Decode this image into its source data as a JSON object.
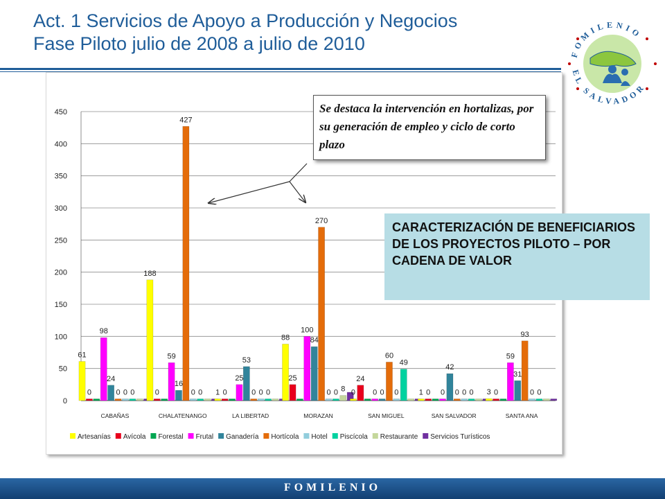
{
  "header": {
    "title_line1": "Act. 1 Servicios de Apoyo a Producción y Negocios",
    "title_line2": "Fase Piloto julio de 2008 a julio de 2010"
  },
  "logo": {
    "text_top": "FOMILENIO",
    "text_bottom": "EL SALVADOR"
  },
  "callout": {
    "text": "Se destaca la intervención en hortalizas, por su generación de empleo y ciclo de corto plazo"
  },
  "info_box": {
    "text": "CARACTERIZACIÓN DE BENEFICIARIOS DE LOS PROYECTOS PILOTO – POR CADENA DE VALOR"
  },
  "footer": {
    "text": "FOMILENIO"
  },
  "colors": {
    "title": "#1f5d99",
    "info_box_bg": "#b7dde5",
    "footer": "#1a4f8a"
  },
  "chart_data": {
    "type": "bar",
    "categories": [
      "CABAÑAS",
      "CHALATENANGO",
      "LA LIBERTAD",
      "MORAZAN",
      "SAN MIGUEL",
      "SAN SALVADOR",
      "SANTA ANA"
    ],
    "ylim": [
      0,
      450
    ],
    "yticks": [
      "0",
      "50",
      "100",
      "150",
      "200",
      "250",
      "300",
      "350",
      "400",
      "450"
    ],
    "legend_position": "bottom",
    "grid": true,
    "series": [
      {
        "name": "Artesanías",
        "color": "#ffff00",
        "values": [
          61,
          188,
          1,
          88,
          0,
          1,
          3
        ],
        "labels": [
          "61",
          "188",
          "1",
          "88",
          "0",
          "1",
          "3"
        ]
      },
      {
        "name": "Avícola",
        "color": "#e8001c",
        "values": [
          0,
          0,
          0,
          25,
          24,
          0,
          0
        ],
        "labels": [
          "0",
          "0",
          "0",
          "25",
          "24",
          "0",
          "0"
        ]
      },
      {
        "name": "Forestal",
        "color": "#00a651",
        "values": [
          0,
          0,
          0,
          0,
          0,
          0,
          0
        ],
        "labels": [
          "",
          "",
          "",
          "",
          "",
          "",
          ""
        ]
      },
      {
        "name": "Frutal",
        "color": "#ff00ff",
        "values": [
          98,
          59,
          25,
          100,
          0,
          0,
          59
        ],
        "labels": [
          "98",
          "59",
          "25",
          "100",
          "0",
          "0",
          "59"
        ]
      },
      {
        "name": "Ganadería",
        "color": "#31849b",
        "values": [
          24,
          16,
          53,
          84,
          0,
          42,
          31
        ],
        "labels": [
          "24",
          "16",
          "53",
          "84",
          "0",
          "42",
          "31"
        ]
      },
      {
        "name": "Hortícola",
        "color": "#e46c0a",
        "values": [
          0,
          427,
          0,
          270,
          60,
          0,
          93
        ],
        "labels": [
          "0",
          "427",
          "0",
          "270",
          "60",
          "0",
          "93"
        ]
      },
      {
        "name": "Hotel",
        "color": "#92cddc",
        "values": [
          0,
          0,
          0,
          0,
          0,
          0,
          0
        ],
        "labels": [
          "0",
          "0",
          "0",
          "0",
          "0",
          "0",
          "0"
        ]
      },
      {
        "name": "Piscícola",
        "color": "#00d2a0",
        "values": [
          0,
          0,
          0,
          0,
          49,
          0,
          0
        ],
        "labels": [
          "0",
          "0",
          "0",
          "0",
          "49",
          "0",
          "0"
        ]
      },
      {
        "name": "Restaurante",
        "color": "#c4d79b",
        "values": [
          0,
          0,
          0,
          8,
          0,
          0,
          0
        ],
        "labels": [
          "",
          "",
          "",
          "8",
          "",
          "",
          ""
        ]
      },
      {
        "name": "Servicios Turísticos",
        "color": "#7030a0",
        "values": [
          0,
          0,
          0,
          13,
          0,
          0,
          0
        ],
        "labels": [
          "",
          "",
          "",
          "",
          "",
          "",
          ""
        ]
      }
    ]
  }
}
